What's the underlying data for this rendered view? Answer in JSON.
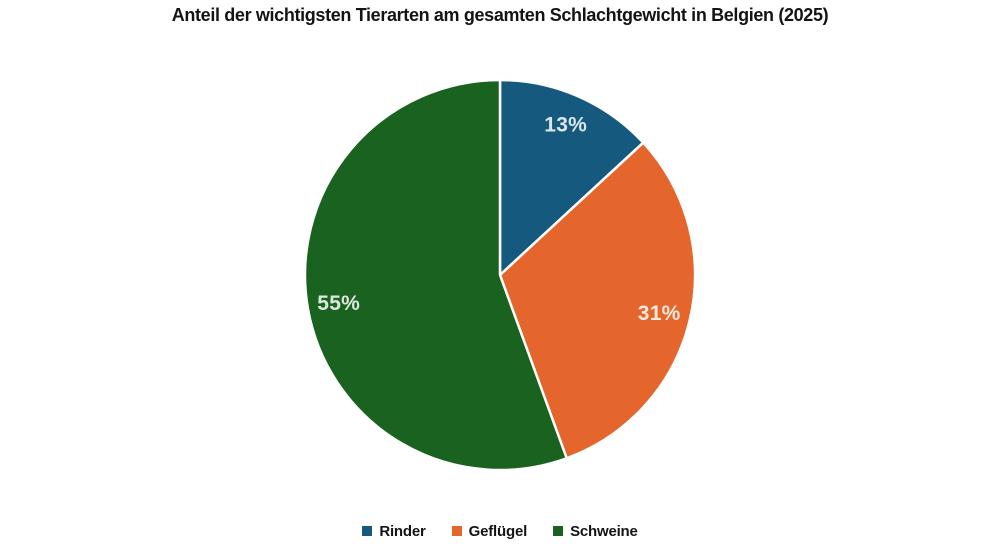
{
  "chart_data": {
    "type": "pie",
    "title": "Anteil der wichtigsten Tierarten am gesamten Schlachtgewicht in Belgien (2025)",
    "slices": [
      {
        "id": "rinder",
        "label": "Rinder",
        "value": 13,
        "display": "13%",
        "color": "#155A7E"
      },
      {
        "id": "gefluegel",
        "label": "Geflügel",
        "value": 31,
        "display": "31%",
        "color": "#E4662C"
      },
      {
        "id": "schweine",
        "label": "Schweine",
        "value": 55,
        "display": "55%",
        "color": "#1A621F"
      }
    ],
    "start_angle_deg": 0,
    "direction": "clockwise",
    "legend_position": "bottom",
    "background": "#FFFFFF",
    "slice_border_color": "#FFFFFF",
    "label_color": "rgba(255,255,255,0.85)",
    "label_radius_fraction": 0.84
  }
}
